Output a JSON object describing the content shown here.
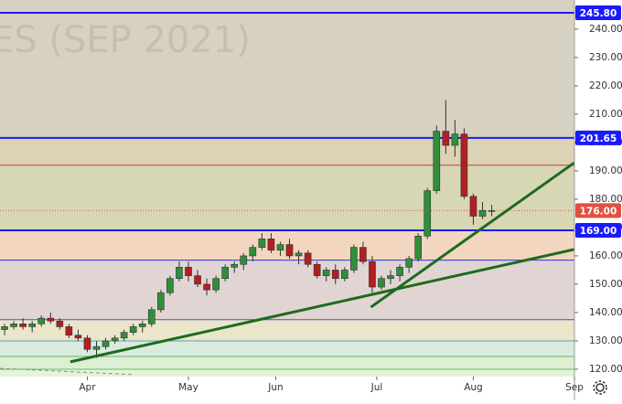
{
  "chart_data": {
    "type": "candlestick",
    "watermark": "ES (SEP 2021)",
    "xlim": [
      -1,
      124
    ],
    "ylim": [
      117.4,
      250.3
    ],
    "xticks": [
      {
        "value": 18,
        "label": "Apr"
      },
      {
        "value": 40,
        "label": "May"
      },
      {
        "value": 59,
        "label": "Jun"
      },
      {
        "value": 81,
        "label": "Jul"
      },
      {
        "value": 102,
        "label": "Aug"
      },
      {
        "value": 124,
        "label": "Sep"
      }
    ],
    "yticks": [
      {
        "value": 120,
        "label": "120.00"
      },
      {
        "value": 130,
        "label": "130.00"
      },
      {
        "value": 140,
        "label": "140.00"
      },
      {
        "value": 150,
        "label": "150.00"
      },
      {
        "value": 160,
        "label": "160.00"
      },
      {
        "value": 170,
        "label": "170.00"
      },
      {
        "value": 180,
        "label": "180.00"
      },
      {
        "value": 190,
        "label": "190.00"
      },
      {
        "value": 200,
        "label": "200.00"
      },
      {
        "value": 210,
        "label": "210.00"
      },
      {
        "value": 220,
        "label": "220.00"
      },
      {
        "value": 230,
        "label": "230.00"
      },
      {
        "value": 240,
        "label": "240.00"
      }
    ],
    "up_color": "#2f8f3a",
    "down_color": "#b02020",
    "zones": [
      {
        "from": 201.65,
        "to": 250.3,
        "color": "#d7d1c2"
      },
      {
        "from": 192,
        "to": 201.65,
        "color": "#dcd3b6"
      },
      {
        "from": 169,
        "to": 192,
        "color": "#d8d7b5"
      },
      {
        "from": 158.5,
        "to": 169,
        "color": "#f3d6bf"
      },
      {
        "from": 137.5,
        "to": 158.5,
        "color": "#e0d5d3"
      },
      {
        "from": 130,
        "to": 137.5,
        "color": "#ebe6ca"
      },
      {
        "from": 124.5,
        "to": 130,
        "color": "#d9ebe1"
      },
      {
        "from": 120,
        "to": 124.5,
        "color": "#dcefd3"
      },
      {
        "from": 117.4,
        "to": 120,
        "color": "#e6f4d6"
      }
    ],
    "levels": [
      {
        "value": 245.8,
        "label": "245.80",
        "color": "#1a1aff"
      },
      {
        "value": 201.65,
        "label": "201.65",
        "color": "#1a1aff"
      },
      {
        "value": 169,
        "label": "169.00",
        "color": "#1a1aff"
      }
    ],
    "lines": [
      {
        "value": 192,
        "color": "#c04040"
      },
      {
        "value": 158.5,
        "color": "#3030e0"
      },
      {
        "value": 137.5,
        "color": "#5050d0"
      },
      {
        "value": 130,
        "color": "#5aa0b0"
      },
      {
        "value": 124.5,
        "color": "#70b070"
      },
      {
        "value": 120,
        "color": "#60c060"
      }
    ],
    "last_price": {
      "value": 176,
      "label": "176.00",
      "color": "#e05040"
    },
    "trendlines": [
      {
        "x": [
          14.3,
          124
        ],
        "y": [
          122.6,
          162.3
        ],
        "color": "#1e6a1e"
      },
      {
        "x": [
          79.7,
          124
        ],
        "y": [
          141.9,
          192.9
        ],
        "color": "#1e6a1e"
      },
      {
        "x": [
          -1,
          27.9
        ],
        "y": [
          120.3,
          118.1
        ],
        "color": "#8a8a8a"
      }
    ],
    "candles": {
      "x": [
        0,
        2,
        4,
        6,
        8,
        10,
        12,
        14,
        16,
        18,
        20,
        22,
        24,
        26,
        28,
        30,
        32,
        34,
        36,
        38,
        40,
        42,
        44,
        46,
        48,
        50,
        52,
        54,
        56,
        58,
        60,
        62,
        64,
        66,
        68,
        70,
        72,
        74,
        76,
        78,
        80,
        82,
        84,
        86,
        88,
        90,
        92,
        94,
        96,
        98,
        100,
        102,
        104,
        106
      ],
      "open": [
        134,
        135,
        136,
        135,
        136,
        138,
        137,
        135,
        132,
        131,
        127,
        128,
        130,
        131,
        133,
        135,
        136,
        141,
        147,
        152,
        156,
        153,
        150,
        148,
        152,
        156,
        157,
        160,
        163,
        166,
        162,
        164,
        160,
        161,
        157,
        153,
        155,
        152,
        155,
        163,
        158,
        149,
        152,
        153,
        156,
        159,
        167,
        183,
        204,
        199,
        203,
        181,
        174,
        176
      ],
      "high": [
        136,
        137,
        138,
        137,
        139,
        140,
        138,
        136,
        134,
        132,
        130,
        131,
        132,
        134,
        136,
        137,
        142,
        148,
        153,
        158,
        158,
        155,
        152,
        153,
        157,
        158,
        161,
        164,
        168,
        168,
        165,
        166,
        162,
        162,
        158,
        156,
        157,
        156,
        164,
        165,
        160,
        153,
        155,
        157,
        160,
        168,
        184,
        206,
        215,
        208,
        205,
        182,
        179,
        178
      ],
      "low": [
        132,
        134,
        134,
        133,
        135,
        136,
        134,
        131,
        130,
        126,
        124,
        127,
        129,
        130,
        132,
        133,
        135,
        140,
        146,
        151,
        151,
        149,
        146,
        147,
        151,
        154,
        155,
        158,
        162,
        161,
        160,
        159,
        157,
        156,
        152,
        151,
        150,
        151,
        154,
        157,
        147,
        148,
        150,
        151,
        154,
        158,
        166,
        182,
        196,
        195,
        180,
        171,
        173,
        174
      ],
      "close": [
        135,
        136,
        135,
        136,
        138,
        137,
        135,
        132,
        131,
        127,
        128,
        130,
        131,
        133,
        135,
        136,
        141,
        147,
        152,
        156,
        153,
        150,
        148,
        152,
        156,
        157,
        160,
        163,
        166,
        162,
        164,
        160,
        161,
        157,
        153,
        155,
        152,
        155,
        163,
        158,
        149,
        152,
        153,
        156,
        159,
        167,
        183,
        204,
        199,
        203,
        181,
        174,
        176,
        176
      ]
    }
  }
}
